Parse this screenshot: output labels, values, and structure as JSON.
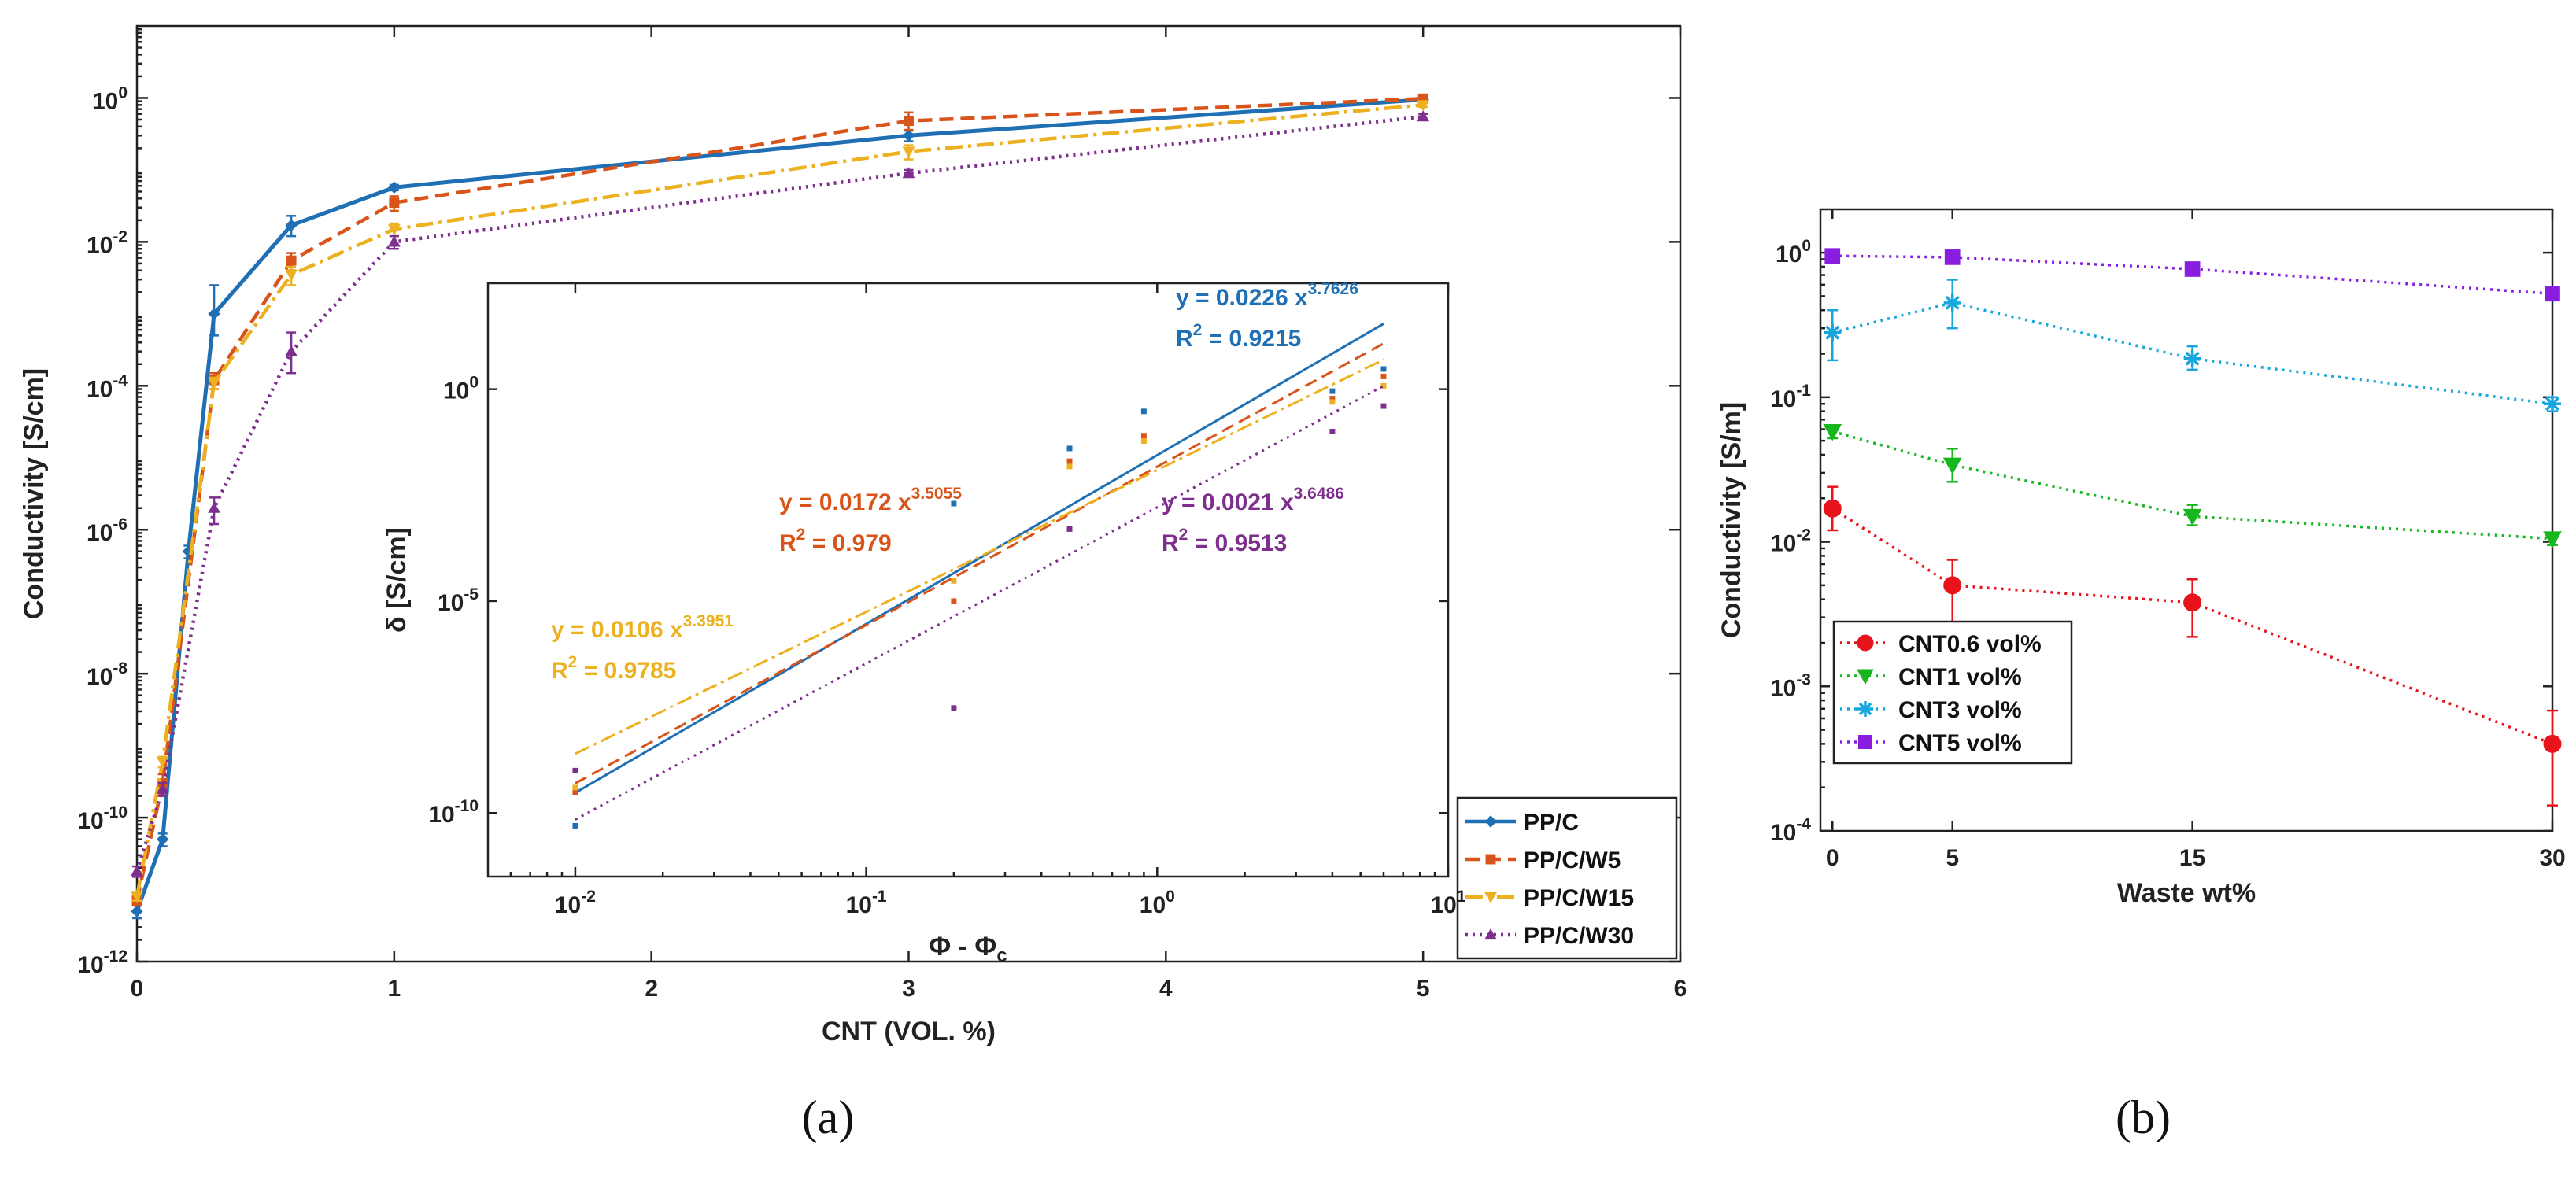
{
  "panel_labels": {
    "a": "(a)",
    "b": "(b)"
  },
  "chart_data": [
    {
      "id": "a_main",
      "type": "line",
      "xlabel": "CNT (VOL. %)",
      "ylabel": "Conductivity [S/cm]",
      "x_scale": "linear",
      "y_scale": "log",
      "xlim": [
        0,
        6
      ],
      "ylim_exp": [
        -12,
        1
      ],
      "x_ticks": [
        0,
        1,
        2,
        3,
        4,
        5,
        6
      ],
      "y_tick_exps": [
        -12,
        -10,
        -8,
        -6,
        -4,
        -2,
        0
      ],
      "y_tick_labels": [
        "10-12",
        "10-10",
        "10-8",
        "10-6",
        "10-4",
        "10-2",
        "100"
      ],
      "legend_position": "bottom-right",
      "series": [
        {
          "name": "PP/C",
          "color": "#1f6fb4",
          "dash": "",
          "marker": "diamond",
          "x": [
            0,
            0.1,
            0.2,
            0.3,
            0.6,
            1,
            3,
            5
          ],
          "y": [
            5e-12,
            5e-11,
            5e-07,
            0.001,
            0.017,
            0.057,
            0.3,
            0.95
          ],
          "err_lo": [
            1e-12,
            1e-11,
            1e-07,
            0.0005,
            0.005,
            0.005,
            0.05,
            0.05
          ],
          "err_hi": [
            1e-12,
            1e-11,
            1e-07,
            0.0015,
            0.006,
            0.005,
            0.05,
            0.05
          ]
        },
        {
          "name": "PP/C/W5",
          "color": "#d9541a",
          "dash": "18,9",
          "marker": "square",
          "x": [
            0,
            0.1,
            0.3,
            0.6,
            1,
            3,
            5
          ],
          "y": [
            7e-12,
            3e-10,
            0.00012,
            0.0055,
            0.035,
            0.48,
            0.98
          ],
          "err_lo": [
            1e-12,
            1e-10,
            3e-05,
            0.0015,
            0.008,
            0.12,
            0.05
          ],
          "err_hi": [
            1e-12,
            1e-10,
            3e-05,
            0.0015,
            0.008,
            0.15,
            0.05
          ]
        },
        {
          "name": "PP/C/W15",
          "color": "#edb120",
          "dash": "22,7,4,7",
          "marker": "dtriangle",
          "x": [
            0,
            0.1,
            0.3,
            0.6,
            1,
            3,
            5
          ],
          "y": [
            8e-12,
            6e-10,
            0.00011,
            0.0035,
            0.015,
            0.18,
            0.8
          ],
          "err_lo": [
            1e-12,
            1e-10,
            2e-05,
            0.001,
            0.003,
            0.04,
            0.05
          ],
          "err_hi": [
            1e-12,
            1e-10,
            2e-05,
            0.001,
            0.003,
            0.04,
            0.05
          ]
        },
        {
          "name": "PP/C/W30",
          "color": "#7e2f8e",
          "dash": "3,6",
          "marker": "triangle",
          "x": [
            0,
            0.1,
            0.3,
            0.6,
            1,
            3,
            5
          ],
          "y": [
            1.8e-11,
            2.5e-10,
            2e-06,
            0.0003,
            0.01,
            0.09,
            0.55
          ],
          "err_lo": [
            3e-12,
            5e-11,
            8e-07,
            0.00015,
            0.002,
            0.01,
            0.05
          ],
          "err_hi": [
            3e-12,
            5e-11,
            8e-07,
            0.00025,
            0.002,
            0.01,
            0.05
          ]
        }
      ]
    },
    {
      "id": "a_inset",
      "type": "scatter",
      "xlabel": "Φ - Φc",
      "ylabel": "δ [S/cm]",
      "x_scale": "log",
      "y_scale": "log",
      "xlim_exp": [
        -2.3,
        1
      ],
      "ylim_exp": [
        -11.5,
        2.5
      ],
      "x_tick_exps": [
        -2,
        -1,
        0,
        1
      ],
      "x_tick_labels": [
        "10-2",
        "10-1",
        "100",
        "101"
      ],
      "y_tick_exps": [
        -10,
        -5,
        0
      ],
      "y_tick_labels": [
        "10-10",
        "10-5",
        "100"
      ],
      "fits": [
        {
          "name": "PP/C",
          "color": "#1f6fb4",
          "dash": "",
          "a": 0.0226,
          "b": 3.7626,
          "eq": "y = 0.0226 x",
          "exp": "3.7626",
          "r2": "R",
          "r2sup": "2",
          "r2val": " = 0.9215",
          "points_x": [
            0.01,
            0.2,
            0.5,
            0.9,
            4,
            6
          ],
          "points_y": [
            5e-11,
            0.002,
            0.04,
            0.3,
            0.9,
            3
          ]
        },
        {
          "name": "PP/C/W5",
          "color": "#d9541a",
          "dash": "16,8",
          "a": 0.0172,
          "b": 3.5055,
          "eq": "y = 0.0172 x",
          "exp": "3.5055",
          "r2": "R",
          "r2sup": "2",
          "r2val": " = 0.979",
          "points_x": [
            0.01,
            0.2,
            0.5,
            0.9,
            4,
            6
          ],
          "points_y": [
            3e-10,
            1e-05,
            0.02,
            0.08,
            0.6,
            2
          ]
        },
        {
          "name": "PP/C/W15",
          "color": "#edb120",
          "dash": "20,6,4,6",
          "a": 0.0106,
          "b": 3.3951,
          "eq": "y = 0.0106 x",
          "exp": "3.3951",
          "r2": "R",
          "r2sup": "2",
          "r2val": " = 0.9785",
          "points_x": [
            0.01,
            0.2,
            0.5,
            0.9,
            4,
            6
          ],
          "points_y": [
            4e-10,
            3e-05,
            0.015,
            0.06,
            0.5,
            1.2
          ]
        },
        {
          "name": "PP/C/W30",
          "color": "#7e2f8e",
          "dash": "3,6",
          "a": 0.0021,
          "b": 3.6486,
          "eq": "y = 0.0021 x",
          "exp": "3.6486",
          "r2": "R",
          "r2sup": "2",
          "r2val": " = 0.9513",
          "points_x": [
            0.01,
            0.2,
            0.5,
            4,
            6
          ],
          "points_y": [
            1e-09,
            3e-08,
            0.0005,
            0.1,
            0.4
          ]
        }
      ]
    },
    {
      "id": "b",
      "type": "line",
      "xlabel": "Waste wt%",
      "ylabel": "Conductivity [S/m]",
      "x_scale": "linear",
      "y_scale": "log",
      "xlim": [
        -0.5,
        30
      ],
      "ylim_exp": [
        -4,
        0.3
      ],
      "x_ticks": [
        0,
        5,
        15,
        30
      ],
      "y_tick_exps": [
        -4,
        -3,
        -2,
        -1,
        0
      ],
      "y_tick_labels": [
        "10-4",
        "10-3",
        "10-2",
        "10-1",
        "100"
      ],
      "legend_position": "bottom-left",
      "series": [
        {
          "name": "CNT0.6 vol%",
          "color": "#e8131b",
          "dash": "3,6",
          "marker": "circle",
          "x": [
            0,
            5,
            15,
            30
          ],
          "y": [
            0.017,
            0.005,
            0.0038,
            0.0004
          ],
          "err_lo": [
            0.005,
            0.0025,
            0.0016,
            0.00025
          ],
          "err_hi": [
            0.007,
            0.0025,
            0.0017,
            0.00028
          ]
        },
        {
          "name": "CNT1 vol%",
          "color": "#17b51e",
          "dash": "3,6",
          "marker": "dtriangle",
          "x": [
            0,
            5,
            15,
            30
          ],
          "y": [
            0.058,
            0.034,
            0.015,
            0.0105
          ],
          "err_lo": [
            0.006,
            0.008,
            0.002,
            0.001
          ],
          "err_hi": [
            0.006,
            0.01,
            0.003,
            0.001
          ]
        },
        {
          "name": "CNT3 vol%",
          "color": "#18a6de",
          "dash": "3,6",
          "marker": "star",
          "x": [
            0,
            5,
            15,
            30
          ],
          "y": [
            0.28,
            0.45,
            0.185,
            0.09
          ],
          "err_lo": [
            0.1,
            0.15,
            0.03,
            0.01
          ],
          "err_hi": [
            0.12,
            0.2,
            0.04,
            0.01
          ]
        },
        {
          "name": "CNT5 vol%",
          "color": "#8a1ee0",
          "dash": "3,6",
          "marker": "square",
          "x": [
            0,
            5,
            15,
            30
          ],
          "y": [
            0.95,
            0.93,
            0.77,
            0.52
          ],
          "err_lo": [
            0.03,
            0.03,
            0.03,
            0.03
          ],
          "err_hi": [
            0.03,
            0.03,
            0.03,
            0.03
          ]
        }
      ]
    }
  ]
}
